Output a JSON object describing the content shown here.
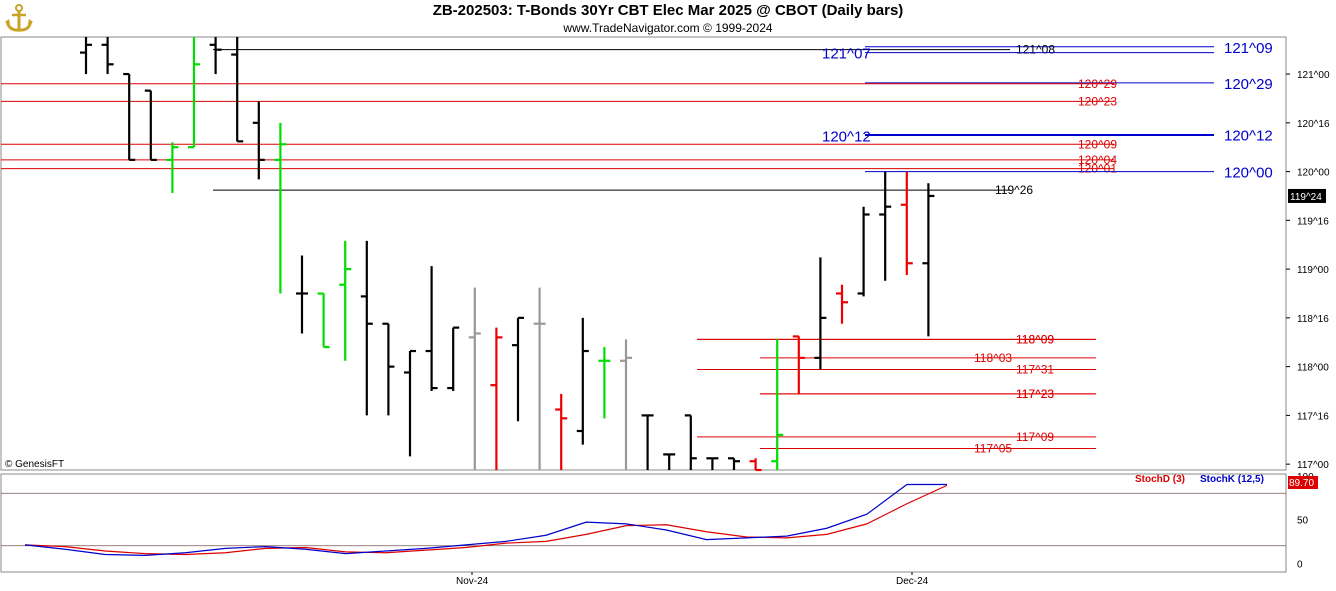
{
  "header": {
    "title": "ZB-202503:  T-Bonds 30Yr CBT Elec Mar 2025 @ CBOT  (Daily bars)",
    "subtitle": "www.TradeNavigator.com © 1999-2024",
    "logo_icon": "anchor-logo-icon"
  },
  "watermark": "© GenesisFT",
  "colors": {
    "up_bar": "#00dd00",
    "down_bar": "#ee0000",
    "neutral_bar": "#000000",
    "gray_bar": "#999999",
    "blue_level": "#0000cc",
    "red_level": "#dd0000",
    "stoch_d": "#dd0000",
    "stoch_k": "#0000cc",
    "last_price_bg": "#000000",
    "stoch_value_bg": "#dd0000"
  },
  "chart_data": [
    {
      "type": "ohlc",
      "title": "ZB-202503:  T-Bonds 30Yr CBT Elec Mar 2025 @ CBOT  (Daily bars)",
      "y_axis": {
        "ticks": [
          "117^00",
          "117^16",
          "118^00",
          "118^16",
          "119^00",
          "119^16",
          "120^00",
          "120^16",
          "121^00"
        ],
        "tick_values": [
          117.0,
          117.5,
          118.0,
          118.5,
          119.0,
          119.5,
          120.0,
          120.5,
          121.0
        ],
        "ylim": [
          116.94,
          121.38
        ],
        "last_price_label": "119^24",
        "last_price": 119.75
      },
      "x_axis": {
        "labels": [
          "Nov-24",
          "Dec-24"
        ]
      },
      "bars": [
        {
          "date": "1",
          "open": 121.22,
          "high": 121.38,
          "low": 121.0,
          "close": 121.3,
          "color": "neutral"
        },
        {
          "date": "2",
          "open": 121.3,
          "high": 121.38,
          "low": 121.0,
          "close": 121.1,
          "color": "neutral"
        },
        {
          "date": "3",
          "open": 121.0,
          "high": 121.0,
          "low": 120.12,
          "close": 120.12,
          "color": "neutral"
        },
        {
          "date": "4",
          "open": 120.83,
          "high": 120.83,
          "low": 120.12,
          "close": 120.12,
          "color": "neutral"
        },
        {
          "date": "5",
          "open": 120.12,
          "high": 120.3,
          "low": 119.78,
          "close": 120.25,
          "color": "up"
        },
        {
          "date": "6",
          "open": 120.25,
          "high": 121.38,
          "low": 120.28,
          "close": 121.1,
          "color": "up"
        },
        {
          "date": "7",
          "open": 121.3,
          "high": 121.38,
          "low": 121.0,
          "close": 121.25,
          "color": "neutral"
        },
        {
          "date": "8",
          "open": 121.2,
          "high": 121.38,
          "low": 120.31,
          "close": 120.31,
          "color": "neutral"
        },
        {
          "date": "9",
          "open": 120.5,
          "high": 120.72,
          "low": 119.92,
          "close": 120.12,
          "color": "neutral"
        },
        {
          "date": "10",
          "open": 120.12,
          "high": 120.5,
          "low": 118.75,
          "close": 120.28,
          "color": "up"
        },
        {
          "date": "11",
          "open": 118.75,
          "high": 119.14,
          "low": 118.34,
          "close": 118.75,
          "color": "neutral"
        },
        {
          "date": "12",
          "open": 118.75,
          "high": 118.75,
          "low": 118.22,
          "close": 118.2,
          "color": "up"
        },
        {
          "date": "13",
          "open": 118.84,
          "high": 119.29,
          "low": 118.06,
          "close": 119.0,
          "color": "up"
        },
        {
          "date": "14",
          "open": 118.72,
          "high": 119.29,
          "low": 117.5,
          "close": 118.44,
          "color": "neutral"
        },
        {
          "date": "15",
          "open": 118.44,
          "high": 118.44,
          "low": 117.5,
          "close": 118.0,
          "color": "neutral"
        },
        {
          "date": "16",
          "open": 117.94,
          "high": 118.16,
          "low": 117.08,
          "close": 118.16,
          "color": "neutral"
        },
        {
          "date": "17",
          "open": 118.16,
          "high": 119.03,
          "low": 117.75,
          "close": 117.78,
          "color": "neutral"
        },
        {
          "date": "18",
          "open": 117.78,
          "high": 118.4,
          "low": 117.75,
          "close": 118.4,
          "color": "neutral"
        },
        {
          "date": "19",
          "open": 118.3,
          "high": 118.81,
          "low": 116.94,
          "close": 118.34,
          "color": "gray"
        },
        {
          "date": "20",
          "open": 117.81,
          "high": 118.4,
          "low": 116.94,
          "close": 118.3,
          "color": "down"
        },
        {
          "date": "21",
          "open": 118.22,
          "high": 118.5,
          "low": 117.44,
          "close": 118.5,
          "color": "neutral"
        },
        {
          "date": "22",
          "open": 118.44,
          "high": 118.81,
          "low": 116.94,
          "close": 118.44,
          "color": "gray"
        },
        {
          "date": "23",
          "open": 117.56,
          "high": 117.72,
          "low": 116.94,
          "close": 117.47,
          "color": "down"
        },
        {
          "date": "24",
          "open": 117.34,
          "high": 118.5,
          "low": 117.2,
          "close": 118.16,
          "color": "neutral"
        },
        {
          "date": "25",
          "open": 118.06,
          "high": 118.2,
          "low": 117.47,
          "close": 118.06,
          "color": "up"
        },
        {
          "date": "26",
          "open": 118.06,
          "high": 118.28,
          "low": 116.94,
          "close": 118.09,
          "color": "gray"
        },
        {
          "date": "27",
          "open": 117.5,
          "high": 117.5,
          "low": 116.94,
          "close": 117.5,
          "color": "neutral"
        },
        {
          "date": "28",
          "open": 117.1,
          "high": 117.1,
          "low": 116.94,
          "close": 117.1,
          "color": "neutral"
        },
        {
          "date": "29",
          "open": 117.5,
          "high": 117.5,
          "low": 116.94,
          "close": 117.06,
          "color": "neutral"
        },
        {
          "date": "30",
          "open": 117.06,
          "high": 117.06,
          "low": 116.94,
          "close": 117.06,
          "color": "neutral"
        },
        {
          "date": "31",
          "open": 117.06,
          "high": 117.06,
          "low": 116.94,
          "close": 117.03,
          "color": "neutral"
        },
        {
          "date": "32",
          "open": 117.03,
          "high": 117.06,
          "low": 116.94,
          "close": 116.94,
          "color": "down"
        },
        {
          "date": "33",
          "open": 117.03,
          "high": 118.28,
          "low": 116.94,
          "close": 117.3,
          "color": "up"
        },
        {
          "date": "34",
          "open": 118.31,
          "high": 118.28,
          "low": 117.72,
          "close": 118.09,
          "color": "down"
        },
        {
          "date": "35",
          "open": 118.09,
          "high": 119.12,
          "low": 117.97,
          "close": 118.5,
          "color": "neutral"
        },
        {
          "date": "36",
          "open": 118.75,
          "high": 118.84,
          "low": 118.44,
          "close": 118.66,
          "color": "down"
        },
        {
          "date": "37",
          "open": 118.75,
          "high": 119.64,
          "low": 118.72,
          "close": 119.56,
          "color": "neutral"
        },
        {
          "date": "38",
          "open": 119.56,
          "high": 120.0,
          "low": 118.88,
          "close": 119.64,
          "color": "neutral"
        },
        {
          "date": "39",
          "open": 119.66,
          "high": 120.0,
          "low": 118.94,
          "close": 119.06,
          "color": "down"
        },
        {
          "date": "40",
          "open": 119.06,
          "high": 119.88,
          "low": 118.31,
          "close": 119.75,
          "color": "neutral"
        }
      ],
      "levels": [
        {
          "label": "121^09",
          "value": 121.28,
          "color": "blue",
          "big": true
        },
        {
          "label": "121^08",
          "value": 121.25,
          "color": "neutral",
          "big": false
        },
        {
          "label": "121^07",
          "value": 121.22,
          "color": "blue",
          "big": true
        },
        {
          "label": "120^29",
          "value": 120.91,
          "color": "blue",
          "big": true
        },
        {
          "label": "120^29",
          "value": 120.9,
          "color": "red",
          "big": false
        },
        {
          "label": "120^23",
          "value": 120.72,
          "color": "red",
          "big": false
        },
        {
          "label": "120^12",
          "value": 120.38,
          "color": "blue",
          "big": true
        },
        {
          "label": "120^12",
          "value": 120.37,
          "color": "blue",
          "big": true
        },
        {
          "label": "120^09",
          "value": 120.28,
          "color": "red",
          "big": false
        },
        {
          "label": "120^04",
          "value": 120.12,
          "color": "red",
          "big": false
        },
        {
          "label": "120^01",
          "value": 120.03,
          "color": "red",
          "big": false
        },
        {
          "label": "120^00",
          "value": 120.0,
          "color": "blue",
          "big": true
        },
        {
          "label": "119^26",
          "value": 119.81,
          "color": "neutral",
          "big": false
        },
        {
          "label": "118^09",
          "value": 118.28,
          "color": "red",
          "big": false
        },
        {
          "label": "118^09",
          "value": 118.28,
          "color": "red",
          "big": false
        },
        {
          "label": "118^03",
          "value": 118.09,
          "color": "red",
          "big": false
        },
        {
          "label": "117^31",
          "value": 117.97,
          "color": "red",
          "big": false
        },
        {
          "label": "117^23",
          "value": 117.72,
          "color": "red",
          "big": false
        },
        {
          "label": "117^23",
          "value": 117.72,
          "color": "red",
          "big": false
        },
        {
          "label": "117^09",
          "value": 117.28,
          "color": "red",
          "big": false
        },
        {
          "label": "117^05",
          "value": 117.16,
          "color": "red",
          "big": false
        }
      ]
    },
    {
      "type": "line",
      "title": "",
      "legend": [
        {
          "name": "StochD (3)",
          "color": "red"
        },
        {
          "name": "StochK (12,5)",
          "color": "blue"
        }
      ],
      "y_axis": {
        "ticks": [
          "0",
          "50",
          "100"
        ],
        "tick_values": [
          0,
          50,
          100
        ],
        "ylim": [
          -10,
          102
        ]
      },
      "last_value_label": "89.70",
      "x": [
        0,
        2,
        4,
        6,
        8,
        10,
        12,
        14,
        16,
        18,
        20,
        22,
        24,
        26,
        28,
        30,
        32,
        34,
        36,
        38,
        40,
        42,
        44,
        46
      ],
      "series": [
        {
          "name": "StochD (3)",
          "values": [
            21,
            19,
            14,
            11,
            10,
            12,
            17,
            18,
            13,
            12,
            15,
            18,
            23,
            25,
            33,
            43,
            44,
            36,
            30,
            29,
            33,
            45,
            68,
            89
          ]
        },
        {
          "name": "StochK (12,5)",
          "values": [
            21,
            16,
            10,
            9,
            12,
            17,
            19,
            16,
            11,
            14,
            17,
            21,
            25,
            32,
            47,
            45,
            38,
            27,
            29,
            31,
            40,
            56,
            90,
            90
          ]
        }
      ],
      "reference_lines": [
        80,
        20
      ]
    }
  ]
}
